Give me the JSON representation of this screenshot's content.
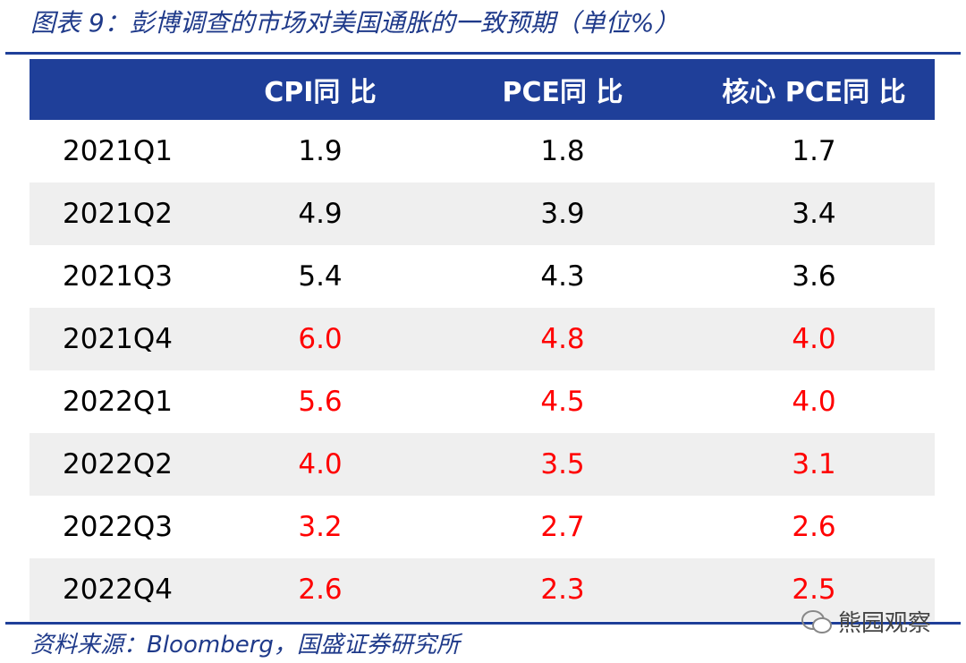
{
  "header": {
    "title": "图表 9：彭博调查的市场对美国通胀的一致预期（单位%）"
  },
  "table": {
    "columns": [
      "",
      "CPI同 比",
      "PCE同 比",
      "核心 PCE同 比"
    ],
    "rows": [
      [
        "2021Q1",
        "1.9",
        "1.8",
        "1.7"
      ],
      [
        "2021Q2",
        "4.9",
        "3.9",
        "3.4"
      ],
      [
        "2021Q3",
        "5.4",
        "4.3",
        "3.6"
      ],
      [
        "2021Q4",
        "6.0",
        "4.8",
        "4.0"
      ],
      [
        "2022Q1",
        "5.6",
        "4.5",
        "4.0"
      ],
      [
        "2022Q2",
        "4.0",
        "3.5",
        "3.1"
      ],
      [
        "2022Q3",
        "3.2",
        "2.7",
        "2.6"
      ],
      [
        "2022Q4",
        "2.6",
        "2.3",
        "2.5"
      ]
    ]
  },
  "footer": {
    "source": "资料来源：Bloomberg，国盛证券研究所",
    "watermark": "熊园观察"
  }
}
